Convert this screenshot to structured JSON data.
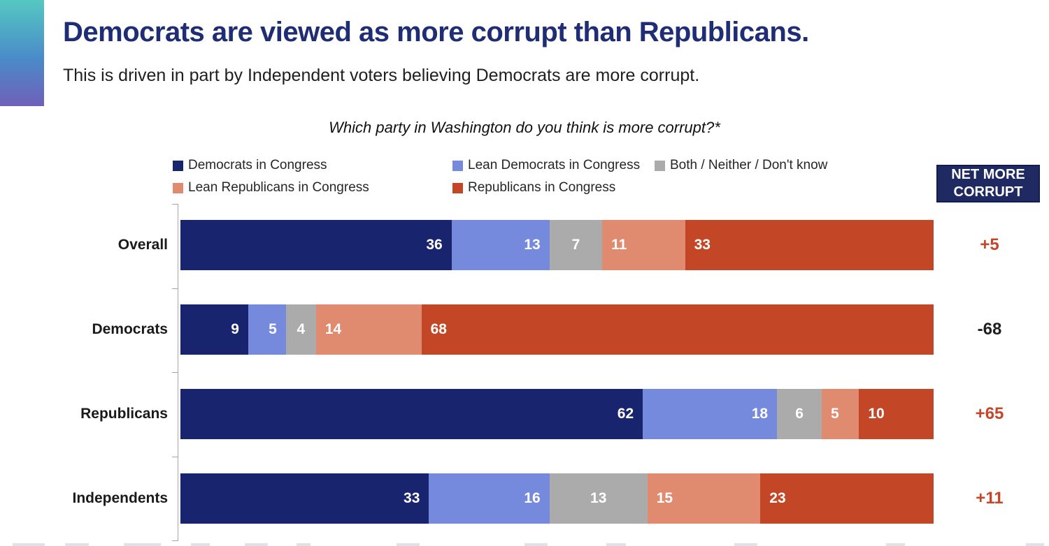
{
  "header": {
    "title": "Democrats are viewed as more corrupt than Republicans.",
    "subtitle": "This is driven in part by Independent voters believing Democrats are more corrupt."
  },
  "chart_data": {
    "type": "bar",
    "variant": "horizontal-100pct-stacked",
    "title": "Which party in Washington do you think is more corrupt?*",
    "categories": [
      "Overall",
      "Democrats",
      "Republicans",
      "Independents"
    ],
    "series": [
      {
        "name": "Democrats in Congress",
        "color": "#18246d",
        "label_align": "end",
        "values": [
          36,
          9,
          62,
          33
        ]
      },
      {
        "name": "Lean Democrats in Congress",
        "color": "#7589dd",
        "label_align": "end",
        "values": [
          13,
          5,
          18,
          16
        ]
      },
      {
        "name": "Both / Neither / Don't know",
        "color": "#ababab",
        "label_align": "center",
        "values": [
          7,
          4,
          6,
          13
        ]
      },
      {
        "name": "Lean Republicans in Congress",
        "color": "#e08a70",
        "label_align": "start",
        "values": [
          11,
          14,
          5,
          15
        ]
      },
      {
        "name": "Republicans in Congress",
        "color": "#c34726",
        "label_align": "start",
        "values": [
          33,
          68,
          10,
          23
        ]
      }
    ],
    "legend_rows": [
      [
        "Democrats in Congress",
        "Lean Democrats in Congress",
        "Both / Neither / Don't know"
      ],
      [
        "Lean Republicans in Congress",
        "Republicans in Congress"
      ]
    ],
    "legend_position": "top",
    "xlim": [
      0,
      100
    ],
    "grid": false,
    "net_column": {
      "header": "NET MORE CORRUPT",
      "values": [
        {
          "text": "+5",
          "color": "#c5472b"
        },
        {
          "text": "-68",
          "color": "#1f1f1f"
        },
        {
          "text": "+65",
          "color": "#c5472b"
        },
        {
          "text": "+11",
          "color": "#c5472b"
        }
      ]
    },
    "colors": {
      "title_navy": "#1f2d75",
      "axis_gray": "#a6a6a6",
      "bar_label_white": "#ffffff"
    }
  }
}
